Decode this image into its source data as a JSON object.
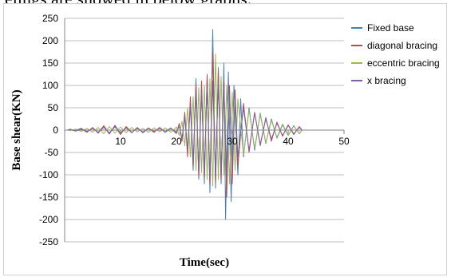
{
  "caption": "elings are showed in below graphs.",
  "chart_data": {
    "type": "line",
    "title": "",
    "xlabel": "Time(sec)",
    "ylabel": "Base shear(KN)",
    "xlim": [
      0,
      50
    ],
    "ylim": [
      -250,
      250
    ],
    "x_ticks": [
      10,
      20,
      30,
      40,
      50
    ],
    "y_ticks": [
      250,
      200,
      150,
      100,
      50,
      0,
      -50,
      -100,
      -150,
      -200,
      -250
    ],
    "grid": "horizontal",
    "legend_position": "right",
    "series": [
      {
        "name": "Fixed base",
        "color": "#4a7ebb",
        "points": [
          [
            0.5,
            0
          ],
          [
            1,
            2
          ],
          [
            1.5,
            -1
          ],
          [
            2,
            0
          ],
          [
            3,
            4
          ],
          [
            4,
            -4
          ],
          [
            5,
            5
          ],
          [
            6,
            -5
          ],
          [
            7,
            9
          ],
          [
            8,
            -9
          ],
          [
            9,
            11
          ],
          [
            10,
            -8
          ],
          [
            11,
            7
          ],
          [
            12,
            -6
          ],
          [
            13,
            6
          ],
          [
            14,
            -6
          ],
          [
            15,
            4
          ],
          [
            16,
            -4
          ],
          [
            17,
            5
          ],
          [
            18,
            -5
          ],
          [
            19,
            4
          ],
          [
            20,
            -6
          ],
          [
            20.5,
            10
          ],
          [
            21,
            -22
          ],
          [
            21.5,
            30
          ],
          [
            22,
            -45
          ],
          [
            22.5,
            60
          ],
          [
            23,
            -90
          ],
          [
            23.5,
            115
          ],
          [
            24,
            -110
          ],
          [
            24.5,
            95
          ],
          [
            25,
            -120
          ],
          [
            25.5,
            125
          ],
          [
            26,
            -140
          ],
          [
            26.5,
            225
          ],
          [
            27,
            -130
          ],
          [
            27.5,
            140
          ],
          [
            28,
            -120
          ],
          [
            28.5,
            150
          ],
          [
            28.8,
            -200
          ],
          [
            29.3,
            130
          ],
          [
            29.8,
            -160
          ],
          [
            30.3,
            100
          ],
          [
            31,
            -100
          ],
          [
            31.5,
            70
          ],
          [
            32,
            -60
          ],
          [
            33,
            50
          ],
          [
            34,
            -45
          ],
          [
            35,
            38
          ],
          [
            36,
            -30
          ],
          [
            37,
            25
          ],
          [
            38,
            -18
          ],
          [
            39,
            12
          ],
          [
            40,
            -12
          ],
          [
            41,
            10
          ],
          [
            42,
            -8
          ],
          [
            42.5,
            0
          ]
        ]
      },
      {
        "name": "diagonal bracing",
        "color": "#be4b48",
        "points": [
          [
            0.5,
            0
          ],
          [
            1,
            1
          ],
          [
            2,
            -2
          ],
          [
            3,
            3
          ],
          [
            4,
            -5
          ],
          [
            5,
            6
          ],
          [
            6,
            -7
          ],
          [
            7,
            10
          ],
          [
            8,
            -8
          ],
          [
            9,
            9
          ],
          [
            10,
            -10
          ],
          [
            11,
            8
          ],
          [
            12,
            -5
          ],
          [
            13,
            5
          ],
          [
            14,
            -5
          ],
          [
            15,
            5
          ],
          [
            16,
            -5
          ],
          [
            17,
            6
          ],
          [
            18,
            -4
          ],
          [
            19,
            5
          ],
          [
            20,
            -8
          ],
          [
            20.5,
            15
          ],
          [
            21,
            -25
          ],
          [
            21.5,
            40
          ],
          [
            22,
            -60
          ],
          [
            22.5,
            75
          ],
          [
            23,
            -80
          ],
          [
            23.5,
            100
          ],
          [
            24,
            -100
          ],
          [
            24.5,
            110
          ],
          [
            25,
            -105
          ],
          [
            25.5,
            120
          ],
          [
            26,
            -120
          ],
          [
            26.5,
            175
          ],
          [
            27,
            -115
          ],
          [
            27.5,
            130
          ],
          [
            28,
            -110
          ],
          [
            28.5,
            110
          ],
          [
            29,
            -150
          ],
          [
            29.5,
            100
          ],
          [
            30,
            -120
          ],
          [
            30.5,
            90
          ],
          [
            31,
            -80
          ],
          [
            32,
            60
          ],
          [
            33,
            -50
          ],
          [
            34,
            40
          ],
          [
            35,
            -35
          ],
          [
            36,
            28
          ],
          [
            37,
            -25
          ],
          [
            38,
            18
          ],
          [
            39,
            -14
          ],
          [
            40,
            12
          ],
          [
            41,
            -10
          ],
          [
            42,
            8
          ],
          [
            42.5,
            0
          ]
        ]
      },
      {
        "name": "eccentric bracing",
        "color": "#98b954",
        "points": [
          [
            0.5,
            0
          ],
          [
            1,
            -1
          ],
          [
            2,
            2
          ],
          [
            3,
            -3
          ],
          [
            4,
            4
          ],
          [
            5,
            -5
          ],
          [
            6,
            6
          ],
          [
            7,
            -8
          ],
          [
            8,
            8
          ],
          [
            9,
            -7
          ],
          [
            10,
            7
          ],
          [
            11,
            -6
          ],
          [
            12,
            6
          ],
          [
            13,
            -4
          ],
          [
            14,
            4
          ],
          [
            15,
            -5
          ],
          [
            16,
            5
          ],
          [
            17,
            -4
          ],
          [
            18,
            5
          ],
          [
            19,
            -5
          ],
          [
            20,
            7
          ],
          [
            20.5,
            -12
          ],
          [
            21,
            20
          ],
          [
            21.5,
            -35
          ],
          [
            22,
            50
          ],
          [
            22.5,
            -60
          ],
          [
            23,
            75
          ],
          [
            23.5,
            -90
          ],
          [
            24,
            95
          ],
          [
            24.5,
            -95
          ],
          [
            25,
            100
          ],
          [
            25.5,
            -110
          ],
          [
            26,
            115
          ],
          [
            26.5,
            -125
          ],
          [
            27,
            170
          ],
          [
            27.5,
            -110
          ],
          [
            28,
            120
          ],
          [
            28.5,
            -100
          ],
          [
            29,
            100
          ],
          [
            29.5,
            -120
          ],
          [
            30,
            85
          ],
          [
            30.5,
            -90
          ],
          [
            31,
            70
          ],
          [
            32,
            -55
          ],
          [
            33,
            45
          ],
          [
            34,
            -40
          ],
          [
            35,
            35
          ],
          [
            36,
            -28
          ],
          [
            37,
            22
          ],
          [
            38,
            -16
          ],
          [
            39,
            14
          ],
          [
            40,
            -12
          ],
          [
            41,
            9
          ],
          [
            42,
            -7
          ],
          [
            42.5,
            0
          ]
        ]
      },
      {
        "name": "x bracing",
        "color": "#7d60a0",
        "points": [
          [
            0.5,
            0
          ],
          [
            1,
            2
          ],
          [
            2,
            -2
          ],
          [
            3,
            2
          ],
          [
            4,
            -3
          ],
          [
            5,
            4
          ],
          [
            6,
            -5
          ],
          [
            7,
            6
          ],
          [
            8,
            -6
          ],
          [
            9,
            7
          ],
          [
            10,
            -6
          ],
          [
            11,
            5
          ],
          [
            12,
            -5
          ],
          [
            13,
            4
          ],
          [
            14,
            -4
          ],
          [
            15,
            4
          ],
          [
            16,
            -3
          ],
          [
            17,
            4
          ],
          [
            18,
            -4
          ],
          [
            19,
            4
          ],
          [
            20,
            -5
          ],
          [
            20.5,
            10
          ],
          [
            21,
            -18
          ],
          [
            21.5,
            30
          ],
          [
            22,
            -45
          ],
          [
            22.5,
            55
          ],
          [
            23,
            -70
          ],
          [
            23.5,
            85
          ],
          [
            24,
            -85
          ],
          [
            24.5,
            90
          ],
          [
            25,
            -95
          ],
          [
            25.5,
            100
          ],
          [
            26,
            -105
          ],
          [
            26.5,
            110
          ],
          [
            27,
            -100
          ],
          [
            27.5,
            105
          ],
          [
            28,
            -95
          ],
          [
            28.5,
            95
          ],
          [
            29,
            -105
          ],
          [
            29.5,
            80
          ],
          [
            30,
            -85
          ],
          [
            30.5,
            70
          ],
          [
            31,
            -60
          ],
          [
            32,
            50
          ],
          [
            33,
            -45
          ],
          [
            34,
            38
          ],
          [
            35,
            -32
          ],
          [
            36,
            25
          ],
          [
            37,
            -20
          ],
          [
            38,
            15
          ],
          [
            39,
            -12
          ],
          [
            40,
            10
          ],
          [
            41,
            -8
          ],
          [
            42,
            6
          ],
          [
            42.5,
            0
          ]
        ]
      }
    ]
  }
}
